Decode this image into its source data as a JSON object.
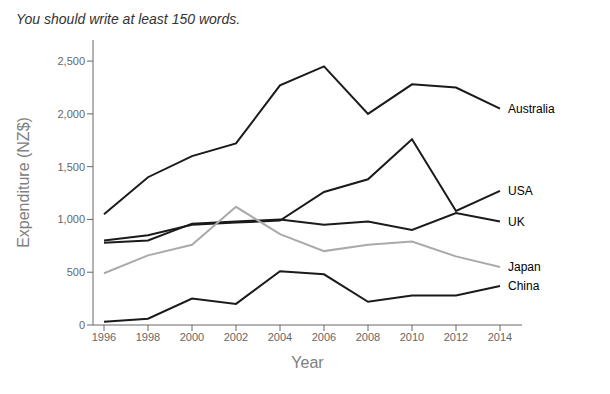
{
  "chart_data": {
    "type": "line",
    "title": "You should write at least 150 words.",
    "x_label": "Year",
    "y_label": "Expenditure (NZ$)",
    "x": [
      1996,
      1998,
      2000,
      2002,
      2004,
      2006,
      2008,
      2010,
      2012,
      2014
    ],
    "series": [
      {
        "name": "Australia",
        "color": "#1a1a1a",
        "values": [
          1050,
          1400,
          1600,
          1720,
          2270,
          2450,
          2000,
          2280,
          2250,
          2050
        ]
      },
      {
        "name": "USA",
        "color": "#1a1a1a",
        "values": [
          800,
          850,
          950,
          970,
          990,
          1260,
          1380,
          1760,
          1080,
          1270
        ]
      },
      {
        "name": "UK",
        "color": "#1a1a1a",
        "values": [
          780,
          800,
          960,
          980,
          1000,
          950,
          980,
          900,
          1060,
          980
        ]
      },
      {
        "name": "Japan",
        "color": "#aaaaaa",
        "values": [
          490,
          660,
          760,
          1120,
          860,
          700,
          760,
          790,
          650,
          550
        ]
      },
      {
        "name": "China",
        "color": "#1a1a1a",
        "values": [
          30,
          60,
          250,
          200,
          510,
          480,
          220,
          280,
          280,
          370
        ]
      }
    ],
    "xlim": [
      1995.5,
      2015
    ],
    "xticks": [
      1996,
      1998,
      2000,
      2002,
      2004,
      2006,
      2008,
      2010,
      2012,
      2014
    ],
    "ylim": [
      0,
      2700
    ],
    "yticks": [
      0,
      500,
      {
        "value": 1000,
        "label": "1,000"
      },
      {
        "value": 1500,
        "label": "1,500"
      },
      {
        "value": 2000,
        "label": "2,000"
      },
      {
        "value": 2500,
        "label": "2,500"
      }
    ],
    "grid": false
  }
}
